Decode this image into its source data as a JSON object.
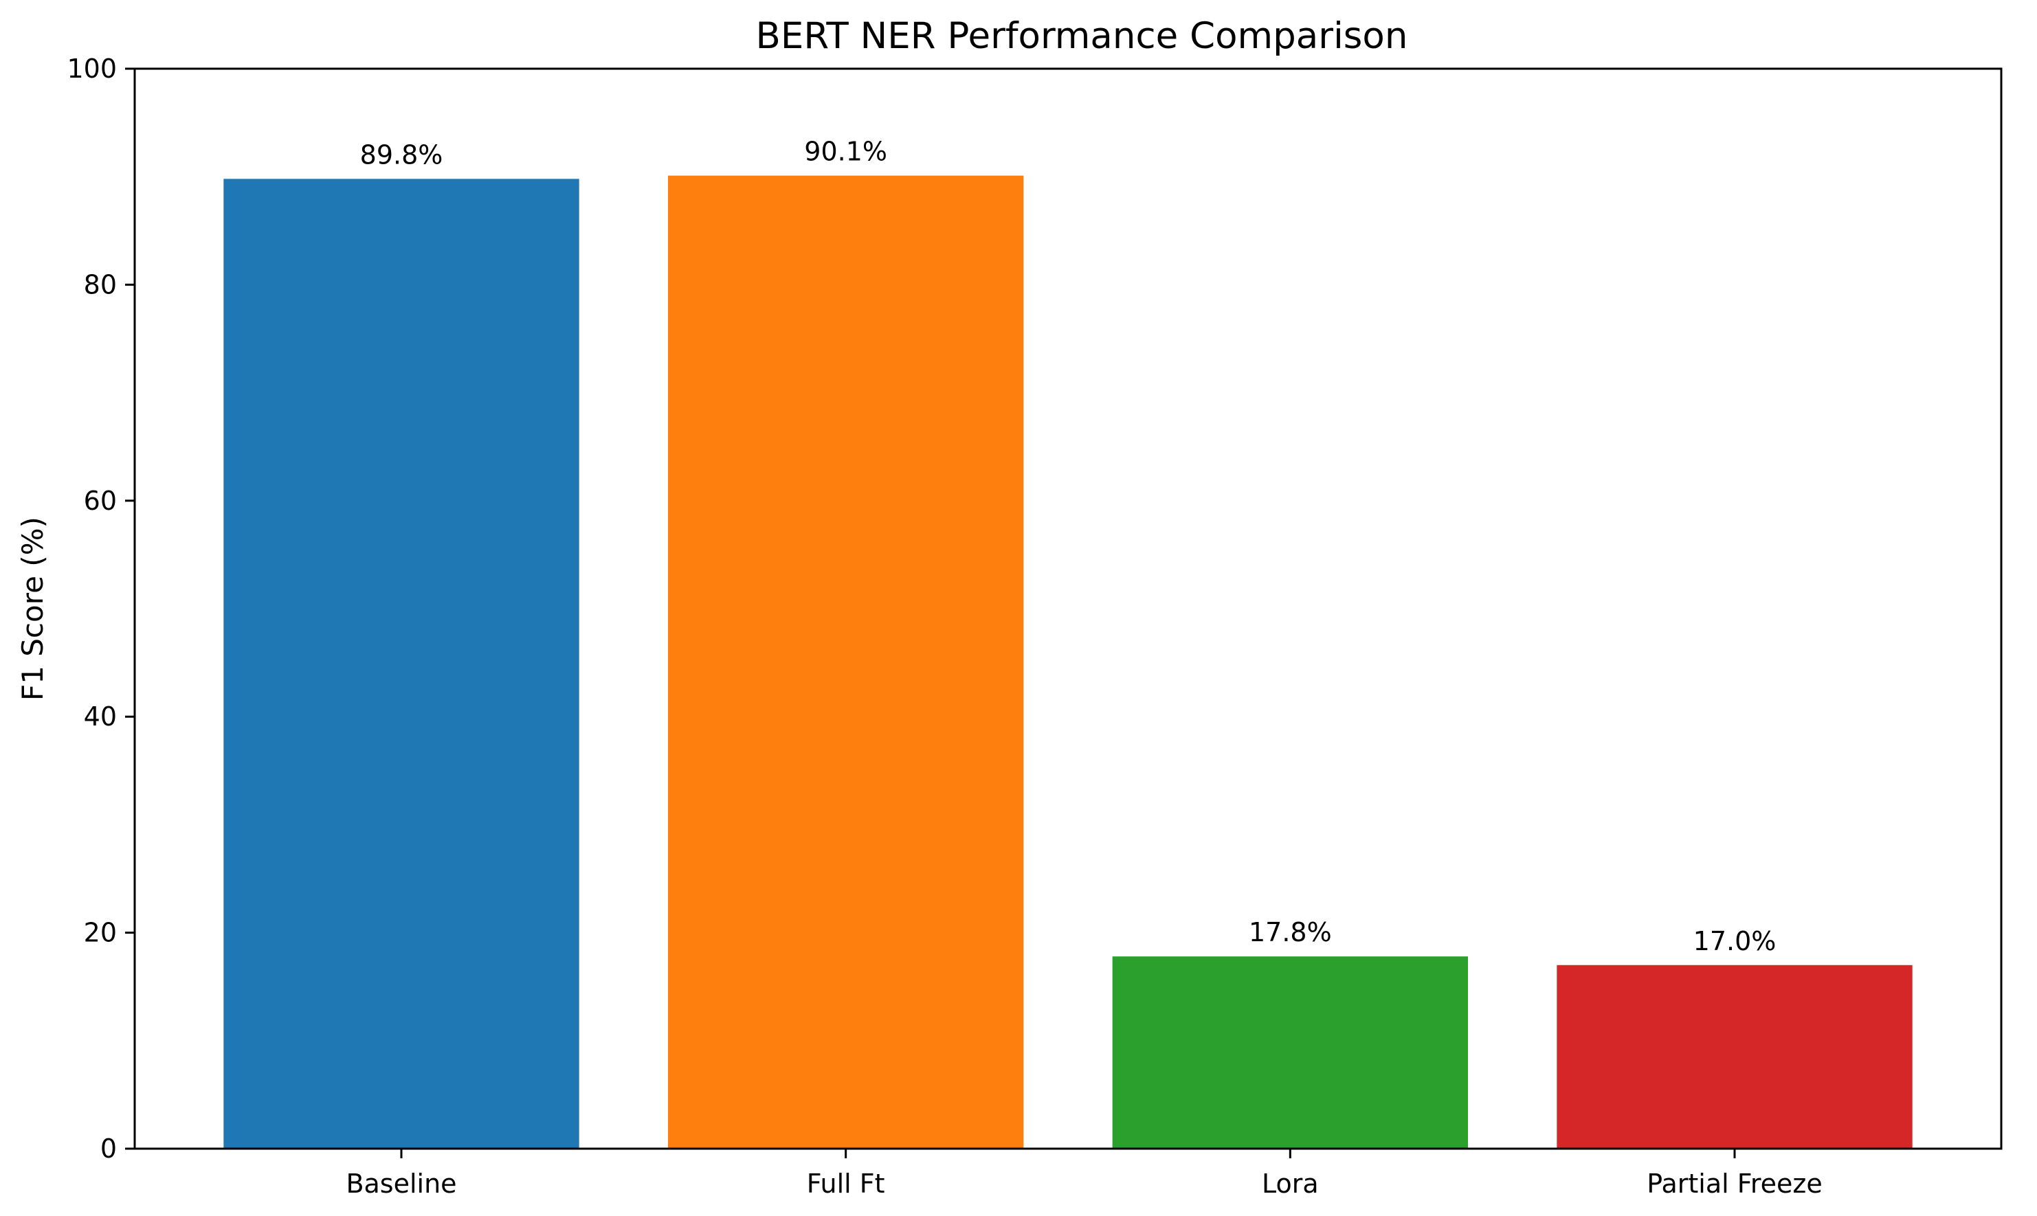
{
  "chart_data": {
    "type": "bar",
    "title": "BERT NER Performance Comparison",
    "xlabel": "",
    "ylabel": "F1 Score (%)",
    "categories": [
      "Baseline",
      "Full Ft",
      "Lora",
      "Partial Freeze"
    ],
    "values": [
      89.8,
      90.1,
      17.8,
      17.0
    ],
    "data_labels": [
      "89.8%",
      "90.1%",
      "17.8%",
      "17.0%"
    ],
    "colors": [
      "#1f77b4",
      "#ff7f0e",
      "#2ca02c",
      "#d62728"
    ],
    "ylim": [
      0,
      100
    ],
    "yticks": [
      0,
      20,
      40,
      60,
      80,
      100
    ],
    "ytick_labels": [
      "0",
      "20",
      "40",
      "60",
      "80",
      "100"
    ],
    "grid": false,
    "legend": "none"
  }
}
